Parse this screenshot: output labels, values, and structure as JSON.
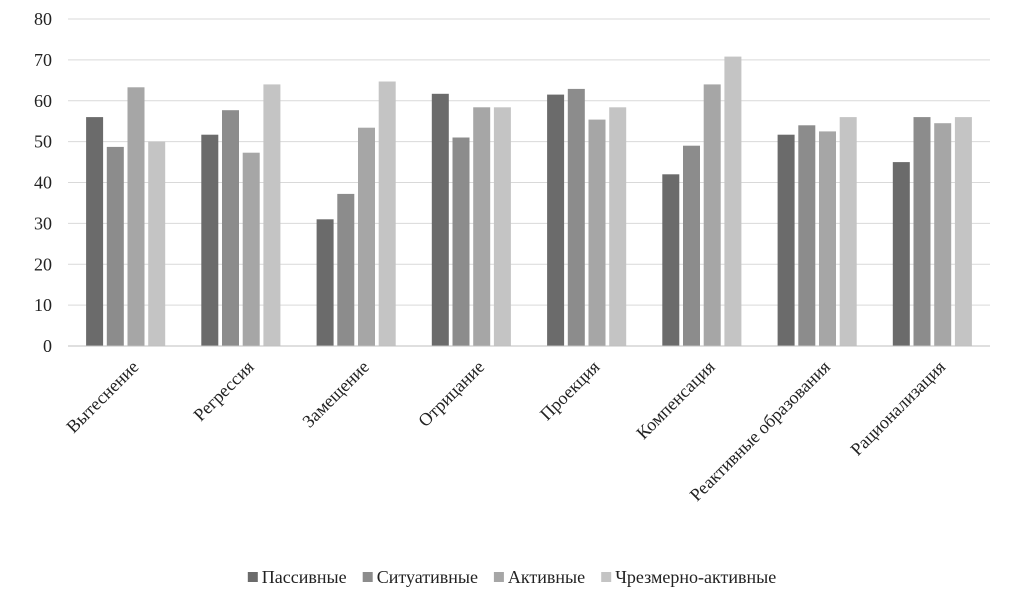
{
  "chart_data": {
    "type": "bar",
    "title": "",
    "xlabel": "",
    "ylabel": "",
    "ylim": [
      0,
      80
    ],
    "yticks": [
      0,
      10,
      20,
      30,
      40,
      50,
      60,
      70,
      80
    ],
    "grid": true,
    "legend_position": "bottom",
    "categories": [
      "Вытеснение",
      "Регрессия",
      "Замещение",
      "Отрицание",
      "Проекция",
      "Компенсация",
      "Реактивные образования",
      "Рационализация"
    ],
    "series": [
      {
        "name": "Пассивные",
        "color": "#6b6b6b",
        "values": [
          56,
          51.7,
          31,
          61.7,
          61.5,
          42,
          51.7,
          45
        ]
      },
      {
        "name": "Ситуативные",
        "color": "#8c8c8c",
        "values": [
          48.7,
          57.7,
          37.2,
          51,
          62.9,
          49,
          54,
          56
        ]
      },
      {
        "name": "Активные",
        "color": "#a6a6a6",
        "values": [
          63.3,
          47.3,
          53.4,
          58.4,
          55.4,
          64,
          52.5,
          54.5
        ]
      },
      {
        "name": "Чрезмерно-активные",
        "color": "#c4c4c4",
        "values": [
          50,
          64,
          64.7,
          58.4,
          58.4,
          70.8,
          56,
          56
        ]
      }
    ]
  }
}
